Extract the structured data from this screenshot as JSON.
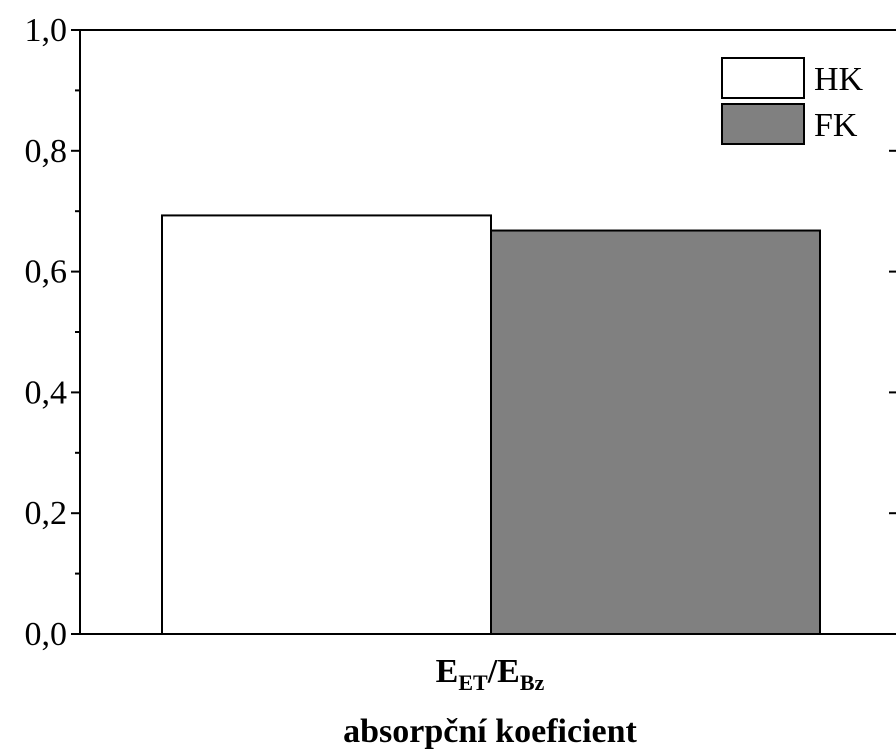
{
  "chart_data": {
    "type": "bar",
    "categories": [
      "E_ET/E_Bz"
    ],
    "category_label": {
      "main1": "E",
      "sub1": "ET",
      "slash": "/",
      "main2": "E",
      "sub2": "Bz"
    },
    "series": [
      {
        "name": "HK",
        "values": [
          0.693
        ],
        "color": "#ffffff"
      },
      {
        "name": "FK",
        "values": [
          0.668
        ],
        "color": "#808080"
      }
    ],
    "title": "",
    "xlabel": "absorpční koeficient",
    "ylabel": "",
    "ylim": [
      0.0,
      1.0
    ],
    "yticks": [
      "0,0",
      "0,2",
      "0,4",
      "0,6",
      "0,8",
      "1,0"
    ],
    "ytick_values": [
      0.0,
      0.2,
      0.4,
      0.6,
      0.8,
      1.0
    ],
    "grid": false,
    "legend_position": "top-right"
  }
}
